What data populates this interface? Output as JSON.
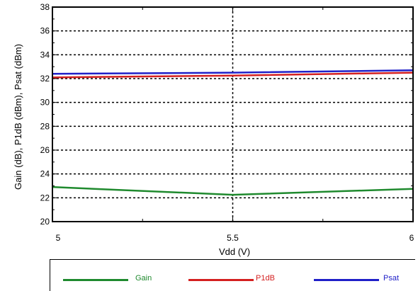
{
  "chart_data": {
    "type": "line",
    "xlabel": "Vdd (V)",
    "ylabel": "Gain (dB), P1dB (dBm), Psat (dBm)",
    "x": [
      5,
      5.5,
      6
    ],
    "x_ticks": [
      "5",
      "5.5",
      "6"
    ],
    "y_ticks": [
      "20",
      "22",
      "24",
      "26",
      "28",
      "30",
      "32",
      "34",
      "36",
      "38"
    ],
    "xlim": [
      5,
      6
    ],
    "ylim": [
      20,
      38
    ],
    "grid": true,
    "legend_position": "bottom",
    "series": [
      {
        "name": "Gain",
        "values": [
          22.9,
          22.25,
          22.75
        ],
        "color": "#1f8a2e"
      },
      {
        "name": "P1dB",
        "values": [
          32.1,
          32.25,
          32.5
        ],
        "color": "#d42020"
      },
      {
        "name": "Psat",
        "values": [
          32.4,
          32.5,
          32.7
        ],
        "color": "#2020c8"
      }
    ]
  }
}
